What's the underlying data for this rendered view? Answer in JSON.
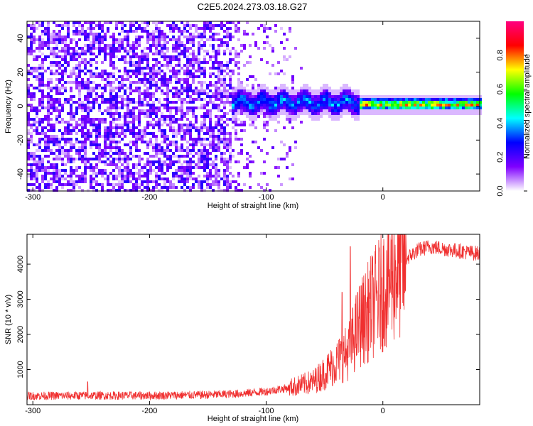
{
  "title": "C2E5.2024.273.03.18.G27",
  "chart_data": [
    {
      "type": "heatmap",
      "xlabel": "Height of straight line (km)",
      "ylabel": "Frequency (Hz)",
      "xlim": [
        -305,
        83
      ],
      "ylim": [
        -50,
        50
      ],
      "x_ticks": [
        -300,
        -200,
        -100,
        0
      ],
      "y_ticks": [
        -40,
        -20,
        0,
        20,
        40
      ],
      "colorbar": {
        "label": "Normalized spectral amplitude",
        "range": [
          0,
          1
        ],
        "ticks": [
          "0.0",
          "0.2",
          "0.4",
          "0.6",
          "0.8"
        ],
        "colors": [
          "#ffffff",
          "#7f00ff",
          "#0000ff",
          "#00ffff",
          "#00ff00",
          "#ffff00",
          "#ff0000",
          "#ff0080"
        ]
      },
      "regions": [
        {
          "x_range": [
            -305,
            -130
          ],
          "description_value": "diffuse noise, amplitude ~0.05-0.25, full frequency band"
        },
        {
          "x_range": [
            -130,
            -20
          ],
          "center_freq_hz": 2,
          "band_halfwidth_hz": 6,
          "peak_amplitude": 0.45
        },
        {
          "x_range": [
            -20,
            83
          ],
          "center_freq_hz": 1,
          "band_halfwidth_hz": 3,
          "peak_amplitude": 0.95
        }
      ]
    },
    {
      "type": "line",
      "xlabel": "Height of straight line (km)",
      "ylabel": "SNR (10 * v/v)",
      "xlim": [
        -305,
        83
      ],
      "ylim": [
        0,
        4850
      ],
      "x_ticks": [
        -300,
        -200,
        -100,
        0
      ],
      "y_ticks": [
        1000,
        2000,
        3000,
        4000
      ],
      "color": "#f03030",
      "trend": {
        "x": [
          -305,
          -250,
          -200,
          -150,
          -120,
          -100,
          -80,
          -60,
          -50,
          -40,
          -30,
          -25,
          -20,
          -15,
          -10,
          -5,
          0,
          10,
          20,
          30,
          40,
          50,
          60,
          70,
          83
        ],
        "y": [
          250,
          260,
          260,
          280,
          320,
          380,
          480,
          650,
          900,
          1200,
          1500,
          1900,
          2300,
          2500,
          2800,
          3000,
          3300,
          3800,
          4150,
          4400,
          4500,
          4450,
          4400,
          4350,
          4300
        ]
      },
      "spikes": [
        {
          "x": -28,
          "y": 4500
        },
        {
          "x": -35,
          "y": 3200
        },
        {
          "x": -253,
          "y": 650
        }
      ]
    }
  ]
}
